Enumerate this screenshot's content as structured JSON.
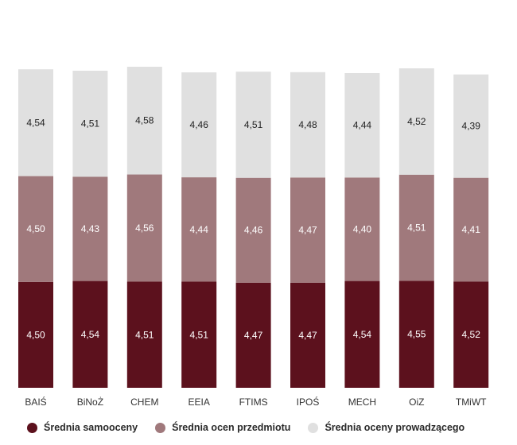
{
  "chart_data": {
    "type": "bar",
    "stacked": true,
    "categories": [
      "BAIŚ",
      "BiNoŻ",
      "CHEM",
      "EEIA",
      "FTIMS",
      "IPOŚ",
      "MECH",
      "OiZ",
      "TMiWT"
    ],
    "series": [
      {
        "name": "Średnia samooceny",
        "color": "#5c111d",
        "label_color": "#ffffff",
        "values": [
          4.5,
          4.54,
          4.51,
          4.51,
          4.47,
          4.47,
          4.54,
          4.55,
          4.52
        ],
        "labels": [
          "4,50",
          "4,54",
          "4,51",
          "4,51",
          "4,47",
          "4,47",
          "4,54",
          "4,55",
          "4,52"
        ]
      },
      {
        "name": "Średnia ocen przedmiotu",
        "color": "#a0797c",
        "label_color": "#ffffff",
        "values": [
          4.5,
          4.43,
          4.56,
          4.44,
          4.46,
          4.47,
          4.4,
          4.51,
          4.41
        ],
        "labels": [
          "4,50",
          "4,43",
          "4,56",
          "4,44",
          "4,46",
          "4,47",
          "4,40",
          "4,51",
          "4,41"
        ]
      },
      {
        "name": "Średnia oceny prowadzącego",
        "color": "#e0e0e0",
        "label_color": "#222222",
        "values": [
          4.54,
          4.51,
          4.58,
          4.46,
          4.51,
          4.48,
          4.44,
          4.52,
          4.39
        ],
        "labels": [
          "4,54",
          "4,51",
          "4,58",
          "4,46",
          "4,51",
          "4,48",
          "4,44",
          "4,52",
          "4,39"
        ]
      }
    ],
    "axis": {
      "y_visible": false,
      "grid": false
    },
    "legend_position": "bottom"
  }
}
